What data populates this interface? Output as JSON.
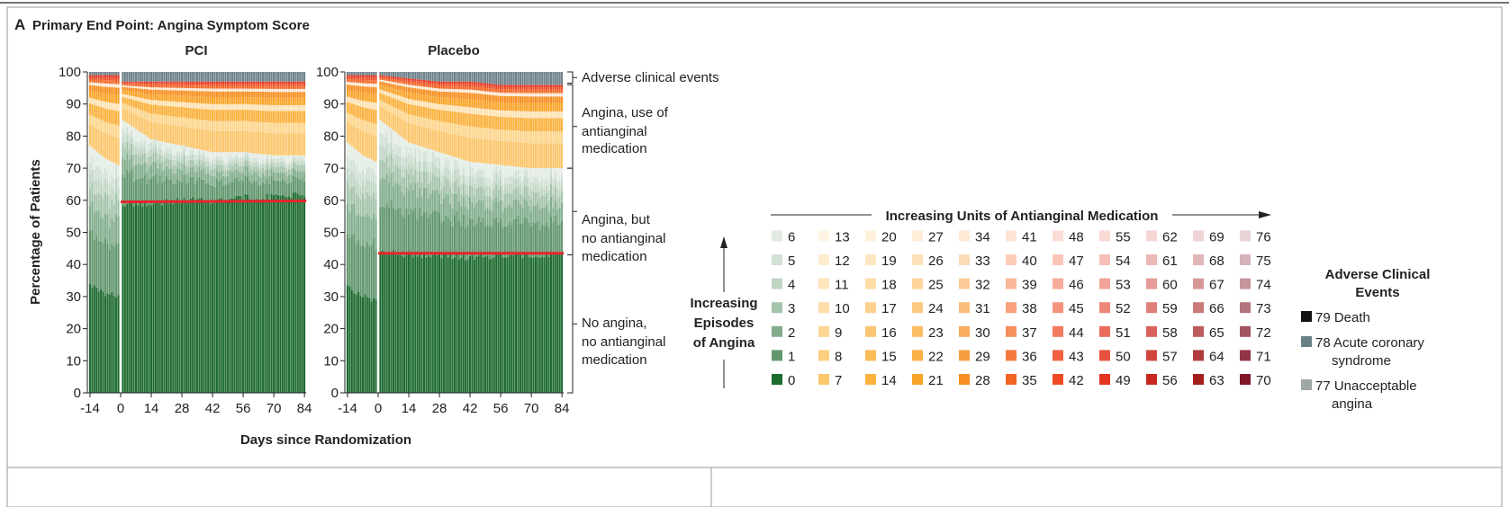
{
  "panel_letter": "A",
  "panel_title": "Primary End Point: Angina Symptom Score",
  "chart_data": {
    "type": "bar",
    "stacked": true,
    "ylabel": "Percentage of Patients",
    "xlabel": "Days since Randomization",
    "ylim": [
      0,
      100
    ],
    "yticks": [
      0,
      10,
      20,
      30,
      40,
      50,
      60,
      70,
      80,
      90,
      100
    ],
    "xticks": [
      -14,
      0,
      14,
      28,
      42,
      56,
      70,
      84
    ],
    "days": [
      -14,
      -7,
      -1,
      1,
      14,
      28,
      42,
      56,
      70,
      84
    ],
    "panels": [
      {
        "title": "PCI",
        "median_line": 59.5,
        "series": [
          {
            "name": "No angina, no antianginal medication",
            "values": [
              34,
              31,
              30,
              59,
              59,
              60,
              60,
              61,
              61,
              62
            ]
          },
          {
            "name": "Angina, but no antianginal medication",
            "values": [
              43,
              42,
              41,
              26,
              20,
              17,
              15,
              14,
              13,
              12
            ]
          },
          {
            "name": "Angina, use of antianginal medication",
            "values": [
              22,
              26,
              28,
              12,
              18,
              20,
              22,
              22,
              23,
              23
            ]
          },
          {
            "name": "Adverse clinical events",
            "values": [
              1,
              1,
              1,
              3,
              3,
              3,
              3,
              3,
              3,
              3
            ]
          }
        ]
      },
      {
        "title": "Placebo",
        "median_line": 43.5,
        "series": [
          {
            "name": "No angina, no antianginal medication",
            "values": [
              33,
              30,
              29,
              44,
              43,
              43,
              42,
              43,
              43,
              43
            ]
          },
          {
            "name": "Angina, but no antianginal medication",
            "values": [
              45,
              44,
              43,
              41,
              35,
              32,
              30,
              28,
              27,
              27
            ]
          },
          {
            "name": "Angina, use of antianginal medication",
            "values": [
              21,
              25,
              27,
              14,
              20,
              22,
              25,
              25,
              26,
              26
            ]
          },
          {
            "name": "Adverse clinical events",
            "values": [
              1,
              1,
              1,
              1,
              2,
              3,
              3,
              4,
              4,
              4
            ]
          }
        ]
      }
    ],
    "annotations": [
      "Adverse clinical events",
      "Angina, use of antianginal medication",
      "Angina, but no antianginal medication",
      "No angina, no antianginal medication"
    ]
  },
  "annotation_lines": [
    [
      "Adverse clinical events"
    ],
    [
      "Angina, use of",
      "antianginal",
      "medication"
    ],
    [
      "Angina, but",
      "no antianginal",
      "medication"
    ],
    [
      "No angina,",
      "no antianginal",
      "medication"
    ]
  ],
  "legend": {
    "x_title": "Increasing Units of Antianginal Medication",
    "y_title": [
      "Increasing",
      "Episodes",
      "of Angina"
    ],
    "column_colors": [
      "#1e6b30",
      "#fcc66c",
      "#fbb23f",
      "#faa42a",
      "#f78f22",
      "#f36523",
      "#ef4a24",
      "#e3361f",
      "#c9281f",
      "#a51f1d",
      "#801628"
    ],
    "codes": [
      [
        0,
        1,
        2,
        3,
        4,
        5,
        6
      ],
      [
        7,
        8,
        9,
        10,
        11,
        12,
        13
      ],
      [
        14,
        15,
        16,
        17,
        18,
        19,
        20
      ],
      [
        21,
        22,
        23,
        24,
        25,
        26,
        27
      ],
      [
        28,
        29,
        30,
        31,
        32,
        33,
        34
      ],
      [
        35,
        36,
        37,
        38,
        39,
        40,
        41
      ],
      [
        42,
        43,
        44,
        45,
        46,
        47,
        48
      ],
      [
        49,
        50,
        51,
        52,
        53,
        54,
        55
      ],
      [
        56,
        57,
        58,
        59,
        60,
        61,
        62
      ],
      [
        63,
        64,
        65,
        66,
        67,
        68,
        69
      ],
      [
        70,
        71,
        72,
        73,
        74,
        75,
        76
      ]
    ],
    "adverse_title": [
      "Adverse Clinical",
      "Events"
    ],
    "adverse_items": [
      {
        "lines": [
          "79 Death"
        ],
        "color": "#111111"
      },
      {
        "lines": [
          "78 Acute coronary",
          "syndrome"
        ],
        "color": "#6b7f88"
      },
      {
        "lines": [
          "77 Unacceptable",
          "angina"
        ],
        "color": "#9ea7a6"
      }
    ]
  },
  "colors": {
    "median_line": "#e8242b",
    "adverse": "#6f828b"
  }
}
